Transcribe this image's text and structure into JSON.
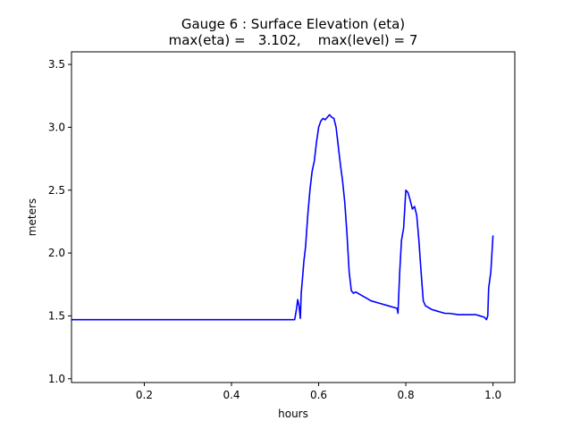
{
  "chart_data": {
    "type": "line",
    "title_line1": "Gauge 6 : Surface Elevation (eta)",
    "title_line2": "max(eta) =   3.102,    max(level) = 7",
    "xlabel": "hours",
    "ylabel": "meters",
    "xlim": [
      0.033,
      1.05
    ],
    "ylim": [
      0.97,
      3.6
    ],
    "xticks": [
      0.2,
      0.4,
      0.6,
      0.8,
      1.0
    ],
    "xtick_labels": [
      "0.2",
      "0.4",
      "0.6",
      "0.8",
      "1.0"
    ],
    "yticks": [
      1.0,
      1.5,
      2.0,
      2.5,
      3.0,
      3.5
    ],
    "ytick_labels": [
      "1.0",
      "1.5",
      "2.0",
      "2.5",
      "3.0",
      "3.5"
    ],
    "grid": false,
    "series": [
      {
        "color": "#0000ff",
        "x": [
          0.033,
          0.1,
          0.2,
          0.3,
          0.4,
          0.5,
          0.545,
          0.549,
          0.552,
          0.555,
          0.558,
          0.56,
          0.563,
          0.566,
          0.57,
          0.575,
          0.58,
          0.585,
          0.59,
          0.595,
          0.6,
          0.605,
          0.61,
          0.615,
          0.62,
          0.625,
          0.63,
          0.635,
          0.64,
          0.645,
          0.65,
          0.655,
          0.66,
          0.665,
          0.67,
          0.675,
          0.68,
          0.685,
          0.69,
          0.7,
          0.71,
          0.72,
          0.74,
          0.76,
          0.78,
          0.782,
          0.786,
          0.79,
          0.795,
          0.8,
          0.805,
          0.81,
          0.815,
          0.82,
          0.825,
          0.83,
          0.835,
          0.84,
          0.845,
          0.85,
          0.855,
          0.86,
          0.87,
          0.88,
          0.89,
          0.9,
          0.92,
          0.94,
          0.96,
          0.97,
          0.98,
          0.985,
          0.988,
          0.99,
          0.995,
          1.0
        ],
        "y": [
          1.47,
          1.47,
          1.47,
          1.47,
          1.47,
          1.47,
          1.47,
          1.55,
          1.63,
          1.58,
          1.48,
          1.68,
          1.8,
          1.93,
          2.05,
          2.3,
          2.5,
          2.65,
          2.73,
          2.88,
          3.0,
          3.05,
          3.07,
          3.06,
          3.08,
          3.1,
          3.08,
          3.07,
          3.0,
          2.85,
          2.7,
          2.57,
          2.4,
          2.15,
          1.85,
          1.7,
          1.68,
          1.69,
          1.68,
          1.66,
          1.64,
          1.62,
          1.6,
          1.58,
          1.56,
          1.52,
          1.85,
          2.1,
          2.2,
          2.5,
          2.48,
          2.42,
          2.35,
          2.37,
          2.3,
          2.1,
          1.85,
          1.62,
          1.58,
          1.57,
          1.56,
          1.55,
          1.54,
          1.53,
          1.52,
          1.52,
          1.51,
          1.51,
          1.51,
          1.5,
          1.49,
          1.47,
          1.5,
          1.72,
          1.85,
          2.14
        ]
      }
    ]
  }
}
